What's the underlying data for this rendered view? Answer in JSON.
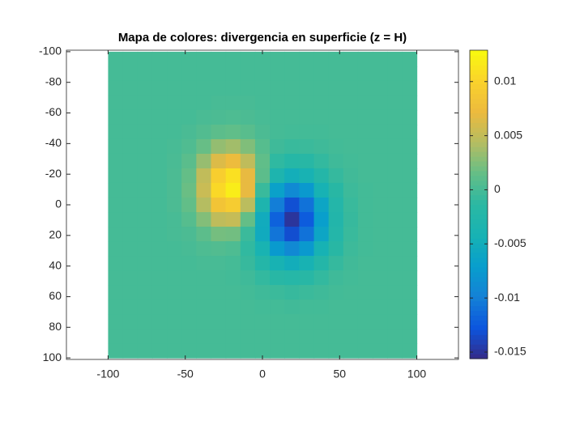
{
  "chart_data": {
    "type": "heatmap",
    "title": "Mapa de colores: divergencia en superficie (z = H)",
    "x": [
      -100,
      -90,
      -80,
      -70,
      -60,
      -50,
      -40,
      -30,
      -20,
      -10,
      0,
      10,
      20,
      30,
      40,
      50,
      60,
      70,
      80,
      90,
      100
    ],
    "y": [
      -100,
      -90,
      -80,
      -70,
      -60,
      -50,
      -40,
      -30,
      -20,
      -10,
      0,
      10,
      20,
      30,
      40,
      50,
      60,
      70,
      80,
      90,
      100
    ],
    "z": [
      [
        0,
        0,
        0,
        0,
        0,
        0,
        0,
        0,
        0,
        0,
        0,
        0,
        0,
        0,
        0,
        0,
        0,
        0,
        0,
        0,
        0
      ],
      [
        0,
        0,
        0,
        0,
        0,
        0,
        0,
        0,
        0,
        0,
        0,
        0,
        0,
        0,
        0,
        0,
        0,
        0,
        0,
        0,
        0
      ],
      [
        0,
        0,
        0,
        0,
        0,
        0,
        0,
        0,
        0,
        0,
        0,
        0,
        0,
        0,
        0,
        0,
        0,
        0,
        0,
        0,
        0
      ],
      [
        0,
        0,
        0,
        0,
        0,
        0,
        0,
        0.0001,
        0.0001,
        0.0001,
        0,
        0,
        0,
        0,
        0,
        0,
        0,
        0,
        0,
        0,
        0
      ],
      [
        0,
        0,
        0,
        0,
        0,
        0,
        0.0002,
        0.0003,
        0.0004,
        0.0003,
        0.0001,
        0,
        0,
        0,
        0,
        0,
        0,
        0,
        0,
        0,
        0
      ],
      [
        0,
        0,
        0,
        0,
        0,
        0.0002,
        0.0006,
        0.0011,
        0.0013,
        0.0009,
        0.0003,
        0,
        -0.0001,
        -0.0001,
        -0.0001,
        0,
        0,
        0,
        0,
        0,
        0
      ],
      [
        0,
        0,
        0,
        0,
        0.0001,
        0.0005,
        0.0016,
        0.0032,
        0.0037,
        0.0025,
        0.0008,
        -0.0003,
        -0.0006,
        -0.0005,
        -0.0003,
        -0.0001,
        0,
        0,
        0,
        0,
        0
      ],
      [
        0,
        0,
        0,
        0,
        0.0002,
        0.001,
        0.0033,
        0.0064,
        0.0074,
        0.0049,
        0.0013,
        -0.0011,
        -0.0019,
        -0.0017,
        -0.0009,
        -0.0003,
        -0.0001,
        0,
        0,
        0,
        0
      ],
      [
        0,
        0,
        0,
        0,
        0.0003,
        0.0015,
        0.005,
        0.0096,
        0.011,
        0.007,
        0.0011,
        -0.0032,
        -0.0048,
        -0.004,
        -0.0022,
        -0.0008,
        -0.0002,
        0,
        0,
        0,
        0
      ],
      [
        0,
        0,
        0,
        0,
        0.0003,
        0.0017,
        0.0054,
        0.0105,
        0.0119,
        0.007,
        -0.0006,
        -0.0066,
        -0.009,
        -0.0075,
        -0.0042,
        -0.0016,
        -0.0004,
        -0.0001,
        0,
        0,
        0
      ],
      [
        0,
        0,
        0,
        0,
        0.0003,
        0.0014,
        0.0044,
        0.0084,
        0.0093,
        0.0047,
        -0.0032,
        -0.0101,
        -0.0131,
        -0.0109,
        -0.0061,
        -0.0023,
        -0.0006,
        -0.0001,
        0,
        0,
        0
      ],
      [
        0,
        0,
        0,
        0,
        0.0001,
        0.0008,
        0.0026,
        0.0049,
        0.0052,
        0.0015,
        -0.0052,
        -0.0119,
        -0.0149,
        -0.0123,
        -0.0069,
        -0.0026,
        -0.0007,
        -0.0001,
        0,
        0,
        0
      ],
      [
        0,
        0,
        0,
        0,
        0.0001,
        0.0003,
        0.0011,
        0.0021,
        0.002,
        -0.0005,
        -0.0053,
        -0.0107,
        -0.0132,
        -0.0109,
        -0.0061,
        -0.0023,
        -0.0006,
        -0.0001,
        0,
        0,
        0
      ],
      [
        0,
        0,
        0,
        0,
        0,
        0.0001,
        0.0004,
        0.0006,
        0.0004,
        -0.001,
        -0.0039,
        -0.0074,
        -0.0091,
        -0.0075,
        -0.0042,
        -0.0016,
        -0.0004,
        -0.0001,
        0,
        0,
        0
      ],
      [
        0,
        0,
        0,
        0,
        0,
        0,
        0.0001,
        0.0001,
        0,
        -0.0007,
        -0.0022,
        -0.004,
        -0.0049,
        -0.004,
        -0.0022,
        -0.0008,
        -0.0002,
        0,
        0,
        0,
        0
      ],
      [
        0,
        0,
        0,
        0,
        0,
        0,
        0,
        0,
        -0.0001,
        -0.0003,
        -0.0009,
        -0.0017,
        -0.002,
        -0.0017,
        -0.0009,
        -0.0003,
        -0.0001,
        0,
        0,
        0,
        0
      ],
      [
        0,
        0,
        0,
        0,
        0,
        0,
        0,
        0,
        0,
        -0.0001,
        -0.0003,
        -0.0005,
        -0.0007,
        -0.0005,
        -0.0003,
        -0.0001,
        0,
        0,
        0,
        0,
        0
      ],
      [
        0,
        0,
        0,
        0,
        0,
        0,
        0,
        0,
        0,
        0,
        -0.0001,
        -0.0001,
        -0.0002,
        -0.0001,
        -0.0001,
        0,
        0,
        0,
        0,
        0,
        0
      ],
      [
        0,
        0,
        0,
        0,
        0,
        0,
        0,
        0,
        0,
        0,
        0,
        0,
        0,
        0,
        0,
        0,
        0,
        0,
        0,
        0,
        0
      ],
      [
        0,
        0,
        0,
        0,
        0,
        0,
        0,
        0,
        0,
        0,
        0,
        0,
        0,
        0,
        0,
        0,
        0,
        0,
        0,
        0,
        0
      ],
      [
        0,
        0,
        0,
        0,
        0,
        0,
        0,
        0,
        0,
        0,
        0,
        0,
        0,
        0,
        0,
        0,
        0,
        0,
        0,
        0,
        0
      ]
    ],
    "xlim": [
      -127,
      127
    ],
    "xticks": [
      -100,
      -50,
      0,
      50,
      100
    ],
    "ylim": [
      -101,
      101
    ],
    "yticks": [
      -100,
      -80,
      -60,
      -40,
      -20,
      0,
      20,
      40,
      60,
      80,
      100
    ],
    "y_reversed": true,
    "colormap": "parula",
    "clim": [
      -0.0156,
      0.0129
    ],
    "cticks": [
      -0.015,
      -0.01,
      -0.005,
      0,
      0.005,
      0.01
    ]
  }
}
